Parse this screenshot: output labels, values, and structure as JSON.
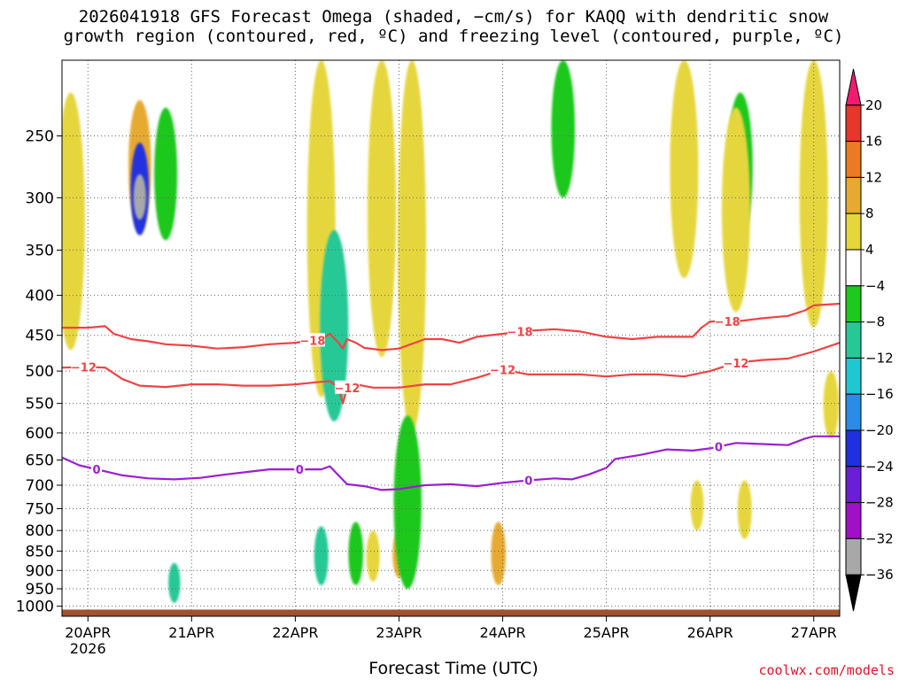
{
  "header": {
    "title_line1": "2026041918 GFS Forecast Omega (shaded, −cm/s) for KAQQ with dendritic snow",
    "title_line2": "growth region (contoured, red, ºC) and freezing level (contoured, purple, ºC)"
  },
  "footer": {
    "xlabel": "Forecast Time (UTC)",
    "credit": "coolwx.com/models"
  },
  "chart_data": {
    "type": "heatmap",
    "y_axis": {
      "quantity": "pressure",
      "reversed": true,
      "range": [
        200,
        1030
      ],
      "ticks": [
        250,
        300,
        350,
        400,
        450,
        500,
        550,
        600,
        650,
        700,
        750,
        800,
        850,
        900,
        950,
        1000
      ],
      "grid": true
    },
    "x_axis": {
      "range": [
        "2026-04-19T18",
        "2026-04-27T06"
      ],
      "ticks": [
        {
          "t": "2026-04-20T00",
          "label": "20APR"
        },
        {
          "t": "2026-04-21T00",
          "label": "21APR"
        },
        {
          "t": "2026-04-22T00",
          "label": "22APR"
        },
        {
          "t": "2026-04-23T00",
          "label": "23APR"
        },
        {
          "t": "2026-04-24T00",
          "label": "24APR"
        },
        {
          "t": "2026-04-25T00",
          "label": "25APR"
        },
        {
          "t": "2026-04-26T00",
          "label": "26APR"
        },
        {
          "t": "2026-04-27T00",
          "label": "27APR"
        }
      ],
      "year_label": "2026",
      "grid": true
    },
    "colorbar": {
      "labels": [
        "20",
        "16",
        "12",
        "8",
        "4",
        "−4",
        "−8",
        "−12",
        "−16",
        "−20",
        "−24",
        "−28",
        "−32",
        "−36"
      ],
      "colors": [
        "#f01a6e",
        "#e8362a",
        "#ec7a22",
        "#e6aa30",
        "#e6d63c",
        "#ffffff",
        "#1ec81e",
        "#26c896",
        "#1ec8d2",
        "#2a8ce6",
        "#2030e0",
        "#6a1ed6",
        "#a010c8",
        "#a8a8a8",
        "#000000"
      ]
    },
    "shading_regions": [
      {
        "t": "2026-04-20T12",
        "p": [
          225,
          330
        ],
        "value": 10
      },
      {
        "t": "2026-04-20T12",
        "p": [
          255,
          335
        ],
        "value": -24
      },
      {
        "t": "2026-04-20T12",
        "p": [
          280,
          320
        ],
        "value": -36
      },
      {
        "t": "2026-04-19T20",
        "p": [
          220,
          470
        ],
        "value": 6
      },
      {
        "t": "2026-04-20T18",
        "p": [
          230,
          340
        ],
        "value": -6
      },
      {
        "t": "2026-04-20T20",
        "p": [
          880,
          990
        ],
        "value": -10
      },
      {
        "t": "2026-04-22T06",
        "p": [
          200,
          540
        ],
        "value": 5
      },
      {
        "t": "2026-04-22T09",
        "p": [
          330,
          580
        ],
        "value": -10
      },
      {
        "t": "2026-04-22T06",
        "p": [
          790,
          940
        ],
        "value": -12
      },
      {
        "t": "2026-04-22T14",
        "p": [
          780,
          940
        ],
        "value": -8
      },
      {
        "t": "2026-04-22T18",
        "p": [
          800,
          930
        ],
        "value": 5
      },
      {
        "t": "2026-04-23T00",
        "p": [
          800,
          920
        ],
        "value": 9
      },
      {
        "t": "2026-04-22T20",
        "p": [
          200,
          480
        ],
        "value": 4
      },
      {
        "t": "2026-04-23T03",
        "p": [
          200,
          600
        ],
        "value": 5
      },
      {
        "t": "2026-04-23T02",
        "p": [
          570,
          950
        ],
        "value": -5
      },
      {
        "t": "2026-04-23T23",
        "p": [
          780,
          940
        ],
        "value": 9
      },
      {
        "t": "2026-04-24T14",
        "p": [
          200,
          300
        ],
        "value": -8
      },
      {
        "t": "2026-04-25T18",
        "p": [
          200,
          380
        ],
        "value": 6
      },
      {
        "t": "2026-04-25T21",
        "p": [
          690,
          800
        ],
        "value": 5
      },
      {
        "t": "2026-04-26T07",
        "p": [
          220,
          340
        ],
        "value": -6
      },
      {
        "t": "2026-04-26T06",
        "p": [
          230,
          420
        ],
        "value": 5
      },
      {
        "t": "2026-04-27T00",
        "p": [
          200,
          440
        ],
        "value": 6
      },
      {
        "t": "2026-04-27T04",
        "p": [
          500,
          610
        ],
        "value": 5
      },
      {
        "t": "2026-04-26T08",
        "p": [
          690,
          820
        ],
        "value": 6
      }
    ],
    "contours": [
      {
        "level": -18,
        "color": "#ee4444",
        "label": "−18",
        "labels_at": [
          "2026-04-22T04",
          "2026-04-24T04",
          "2026-04-26T04"
        ],
        "points": [
          [
            "2026-04-19T18",
            440
          ],
          [
            "2026-04-20T00",
            440
          ],
          [
            "2026-04-20T04",
            438
          ],
          [
            "2026-04-20T06",
            448
          ],
          [
            "2026-04-20T10",
            455
          ],
          [
            "2026-04-20T14",
            458
          ],
          [
            "2026-04-20T18",
            462
          ],
          [
            "2026-04-21T00",
            464
          ],
          [
            "2026-04-21T06",
            468
          ],
          [
            "2026-04-21T12",
            466
          ],
          [
            "2026-04-21T18",
            462
          ],
          [
            "2026-04-22T00",
            460
          ],
          [
            "2026-04-22T06",
            455
          ],
          [
            "2026-04-22T08",
            448
          ],
          [
            "2026-04-22T10",
            460
          ],
          [
            "2026-04-22T11",
            468
          ],
          [
            "2026-04-22T12",
            455
          ],
          [
            "2026-04-22T14",
            460
          ],
          [
            "2026-04-22T16",
            467
          ],
          [
            "2026-04-22T20",
            470
          ],
          [
            "2026-04-23T00",
            468
          ],
          [
            "2026-04-23T06",
            455
          ],
          [
            "2026-04-23T10",
            455
          ],
          [
            "2026-04-23T14",
            460
          ],
          [
            "2026-04-23T18",
            452
          ],
          [
            "2026-04-24T00",
            448
          ],
          [
            "2026-04-24T06",
            444
          ],
          [
            "2026-04-24T12",
            442
          ],
          [
            "2026-04-24T18",
            445
          ],
          [
            "2026-04-25T00",
            452
          ],
          [
            "2026-04-25T06",
            455
          ],
          [
            "2026-04-25T12",
            452
          ],
          [
            "2026-04-25T18",
            452
          ],
          [
            "2026-04-25T20",
            452
          ],
          [
            "2026-04-25T22",
            440
          ],
          [
            "2026-04-26T00",
            432
          ],
          [
            "2026-04-26T06",
            432
          ],
          [
            "2026-04-26T12",
            428
          ],
          [
            "2026-04-26T18",
            425
          ],
          [
            "2026-04-26T22",
            418
          ],
          [
            "2026-04-27T00",
            412
          ],
          [
            "2026-04-27T06",
            410
          ]
        ]
      },
      {
        "level": -12,
        "color": "#ee4444",
        "label": "−12",
        "labels_at": [
          "2026-04-19T23",
          "2026-04-22T12",
          "2026-04-24T00",
          "2026-04-26T06"
        ],
        "points": [
          [
            "2026-04-19T18",
            495
          ],
          [
            "2026-04-20T00",
            494
          ],
          [
            "2026-04-20T04",
            495
          ],
          [
            "2026-04-20T08",
            512
          ],
          [
            "2026-04-20T12",
            522
          ],
          [
            "2026-04-20T18",
            524
          ],
          [
            "2026-04-21T00",
            520
          ],
          [
            "2026-04-21T06",
            520
          ],
          [
            "2026-04-21T12",
            522
          ],
          [
            "2026-04-21T18",
            522
          ],
          [
            "2026-04-22T00",
            520
          ],
          [
            "2026-04-22T06",
            516
          ],
          [
            "2026-04-22T08",
            515
          ],
          [
            "2026-04-22T10",
            525
          ],
          [
            "2026-04-22T11",
            550
          ],
          [
            "2026-04-22T12",
            525
          ],
          [
            "2026-04-22T14",
            520
          ],
          [
            "2026-04-22T18",
            525
          ],
          [
            "2026-04-23T00",
            525
          ],
          [
            "2026-04-23T06",
            520
          ],
          [
            "2026-04-23T12",
            520
          ],
          [
            "2026-04-23T18",
            510
          ],
          [
            "2026-04-24T00",
            498
          ],
          [
            "2026-04-24T06",
            505
          ],
          [
            "2026-04-24T12",
            505
          ],
          [
            "2026-04-24T18",
            505
          ],
          [
            "2026-04-25T00",
            508
          ],
          [
            "2026-04-25T06",
            505
          ],
          [
            "2026-04-25T12",
            505
          ],
          [
            "2026-04-25T18",
            508
          ],
          [
            "2026-04-26T00",
            500
          ],
          [
            "2026-04-26T06",
            488
          ],
          [
            "2026-04-26T12",
            484
          ],
          [
            "2026-04-26T18",
            482
          ],
          [
            "2026-04-27T00",
            472
          ],
          [
            "2026-04-27T06",
            460
          ]
        ]
      },
      {
        "level": 0,
        "color": "#9c1ed2",
        "label": "0",
        "labels_at": [
          "2026-04-20T02",
          "2026-04-22T01",
          "2026-04-24T06",
          "2026-04-26T02"
        ],
        "points": [
          [
            "2026-04-19T18",
            645
          ],
          [
            "2026-04-19T22",
            660
          ],
          [
            "2026-04-20T02",
            668
          ],
          [
            "2026-04-20T08",
            680
          ],
          [
            "2026-04-20T14",
            686
          ],
          [
            "2026-04-20T20",
            688
          ],
          [
            "2026-04-21T02",
            685
          ],
          [
            "2026-04-21T08",
            678
          ],
          [
            "2026-04-21T14",
            672
          ],
          [
            "2026-04-21T18",
            668
          ],
          [
            "2026-04-22T00",
            668
          ],
          [
            "2026-04-22T06",
            668
          ],
          [
            "2026-04-22T08",
            662
          ],
          [
            "2026-04-22T10",
            680
          ],
          [
            "2026-04-22T12",
            698
          ],
          [
            "2026-04-22T16",
            702
          ],
          [
            "2026-04-22T20",
            710
          ],
          [
            "2026-04-23T00",
            708
          ],
          [
            "2026-04-23T06",
            700
          ],
          [
            "2026-04-23T12",
            698
          ],
          [
            "2026-04-23T18",
            702
          ],
          [
            "2026-04-24T00",
            695
          ],
          [
            "2026-04-24T06",
            690
          ],
          [
            "2026-04-24T12",
            686
          ],
          [
            "2026-04-24T16",
            688
          ],
          [
            "2026-04-24T20",
            678
          ],
          [
            "2026-04-25T00",
            665
          ],
          [
            "2026-04-25T02",
            648
          ],
          [
            "2026-04-25T08",
            640
          ],
          [
            "2026-04-25T14",
            630
          ],
          [
            "2026-04-25T20",
            632
          ],
          [
            "2026-04-26T00",
            628
          ],
          [
            "2026-04-26T06",
            618
          ],
          [
            "2026-04-26T12",
            620
          ],
          [
            "2026-04-26T18",
            622
          ],
          [
            "2026-04-26T22",
            610
          ],
          [
            "2026-04-27T00",
            606
          ],
          [
            "2026-04-27T06",
            606
          ]
        ]
      }
    ],
    "surface": {
      "color": "#a0522d",
      "p": [
        1010,
        1030
      ]
    }
  }
}
